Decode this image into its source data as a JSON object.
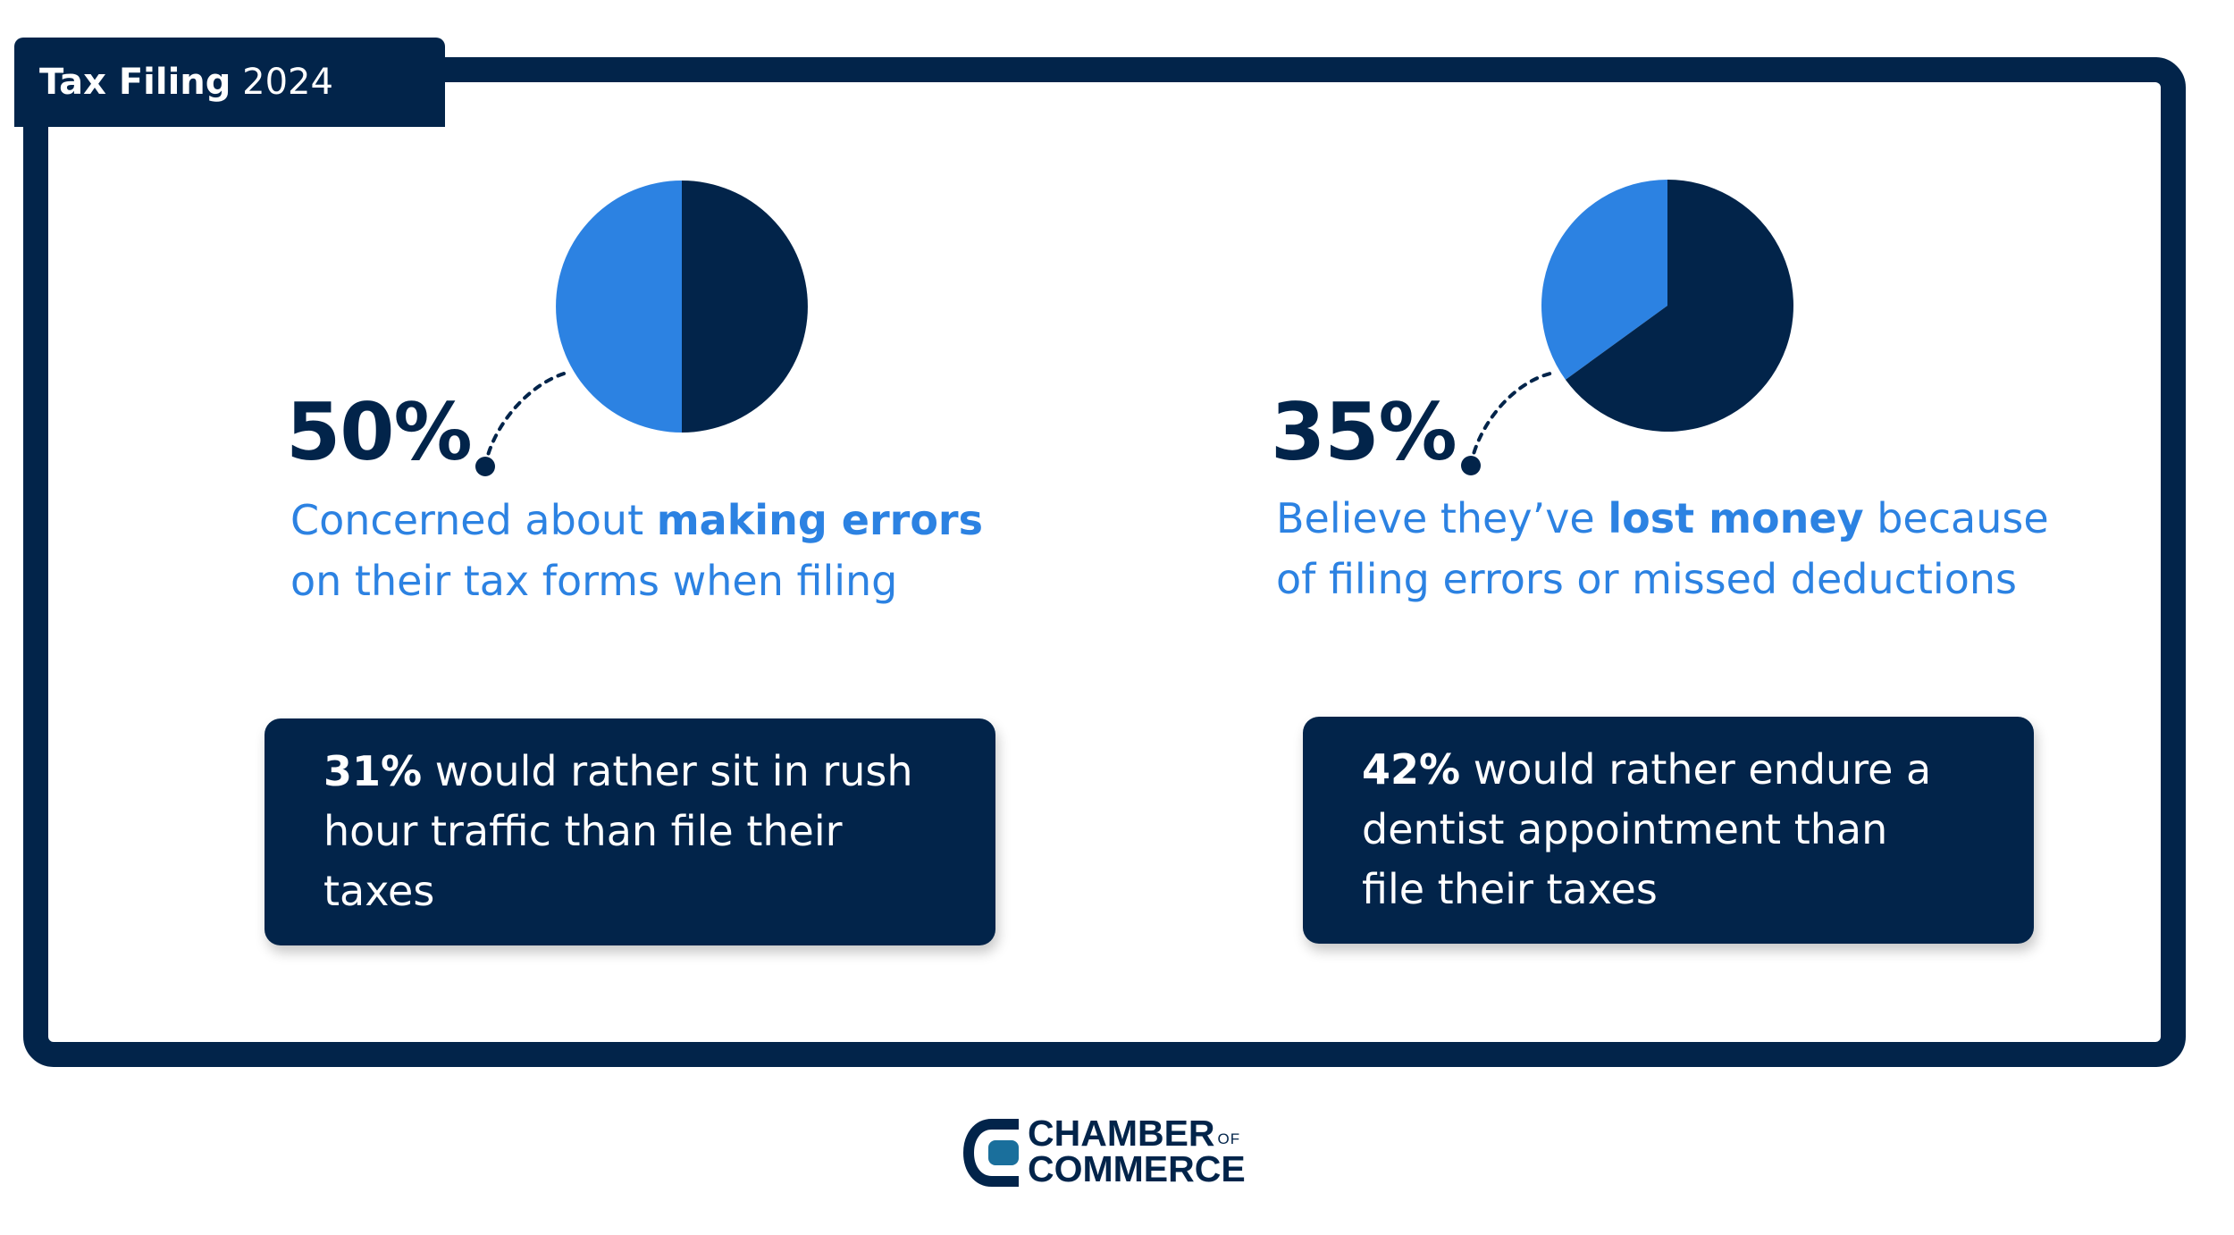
{
  "header": {
    "title_bold": "Tax Filing",
    "title_year": "2024"
  },
  "colors": {
    "navy": "#02244a",
    "blue": "#2c82e2"
  },
  "chart_data": [
    {
      "type": "pie",
      "values": [
        50,
        50
      ],
      "highlight_value": 50,
      "label": "50%",
      "description_parts": [
        "Concerned about ",
        "making errors",
        "on their tax forms when filing"
      ]
    },
    {
      "type": "pie",
      "values": [
        35,
        65
      ],
      "highlight_value": 35,
      "label": "35%",
      "description_parts": [
        "Believe they’ve ",
        "lost money",
        " because",
        "of filing errors or missed deductions"
      ]
    }
  ],
  "cards": [
    {
      "stat": "31%",
      "line1": " would rather sit in rush",
      "line2": "hour traffic than file their",
      "line3": "taxes"
    },
    {
      "stat": "42%",
      "line1": " would rather endure a",
      "line2": "dentist appointment than",
      "line3": "file their taxes"
    }
  ],
  "logo": {
    "line1": "CHAMBER",
    "of": "OF",
    "line2": "COMMERCE",
    "icon": "chamber-c-logo-icon"
  }
}
